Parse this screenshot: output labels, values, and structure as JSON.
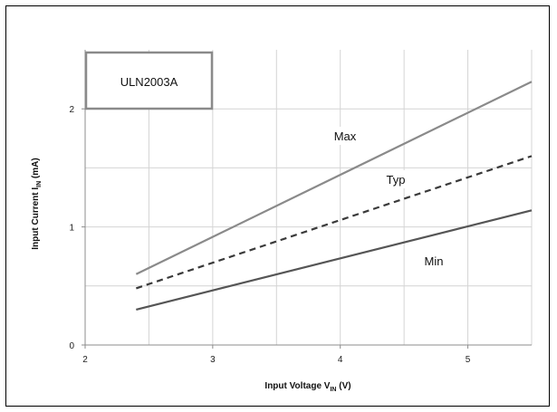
{
  "chart_data": {
    "type": "line",
    "xlabel": {
      "main": "Input Voltage V",
      "sub": "IN",
      "tail": " (V)"
    },
    "ylabel": {
      "main": "Input Current I",
      "sub": "IN",
      "tail": " (mA)"
    },
    "xlim": [
      2,
      5.5
    ],
    "ylim": [
      0,
      2.5
    ],
    "xticks": [
      2,
      3,
      4,
      5
    ],
    "yticks": [
      0,
      1,
      2
    ],
    "xtick_labels": [
      "2",
      "3",
      "4",
      "5"
    ],
    "ytick_labels": [
      "0",
      "1",
      "2"
    ],
    "grid": true,
    "annotation": "ULN2003A",
    "series": [
      {
        "name": "Max",
        "x": [
          2.4,
          5.5
        ],
        "y": [
          0.6,
          2.23
        ],
        "color": "#8a8a8a",
        "dash": "solid"
      },
      {
        "name": "Typ",
        "x": [
          2.4,
          5.5
        ],
        "y": [
          0.48,
          1.6
        ],
        "color": "#3a3a3a",
        "dash": "dashed"
      },
      {
        "name": "Min",
        "x": [
          2.4,
          5.5
        ],
        "y": [
          0.3,
          1.14
        ],
        "color": "#555555",
        "dash": "solid"
      }
    ]
  }
}
